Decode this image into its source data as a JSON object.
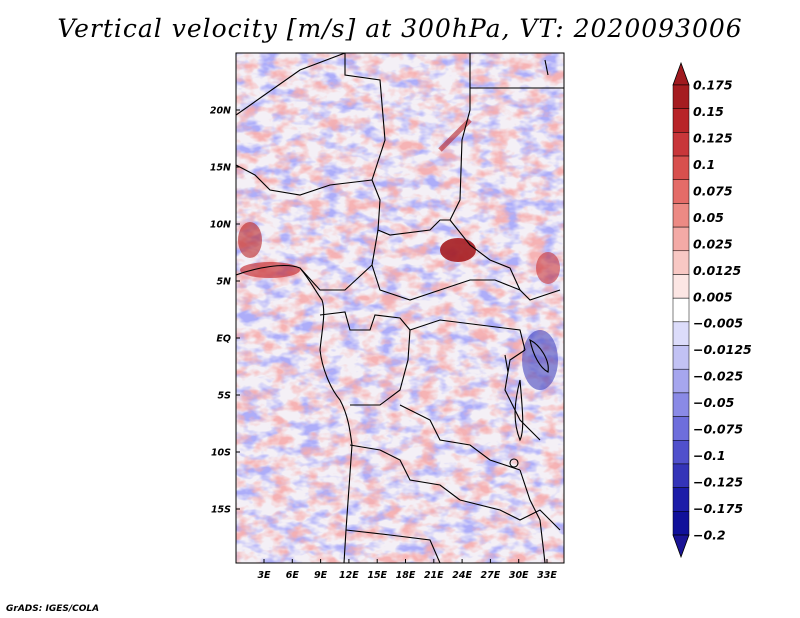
{
  "title": "Vertical velocity [m/s] at 300hPa, VT: 2020093006",
  "footer": "GrADS: IGES/COLA",
  "map": {
    "region": "Central Africa",
    "lat_labels": [
      "20N",
      "15N",
      "10N",
      "5N",
      "EQ",
      "5S",
      "10S",
      "15S"
    ],
    "lon_labels": [
      "3E",
      "6E",
      "9E",
      "12E",
      "15E",
      "18E",
      "21E",
      "24E",
      "27E",
      "30E",
      "33E"
    ]
  },
  "colorbar": {
    "labels": [
      "0.175",
      "0.15",
      "0.125",
      "0.1",
      "0.075",
      "0.05",
      "0.025",
      "0.0125",
      "0.005",
      "−0.005",
      "−0.0125",
      "−0.025",
      "−0.05",
      "−0.075",
      "−0.1",
      "−0.125",
      "−0.175",
      "−0.2"
    ],
    "colors": {
      "top_arrow": "#a01a1f",
      "bands": [
        "#a51c20",
        "#b82428",
        "#c8363a",
        "#d8504e",
        "#e46c68",
        "#ec8a84",
        "#f3aaa6",
        "#f8c8c4",
        "#fce6e4",
        "#ffffff",
        "#dcdcfa",
        "#c2c2f4",
        "#a6a6ee",
        "#8a8ae6",
        "#6e6edc",
        "#5050cc",
        "#3434b8",
        "#1c1ca8",
        "#10109a"
      ],
      "bottom_arrow": "#1a1496"
    }
  }
}
